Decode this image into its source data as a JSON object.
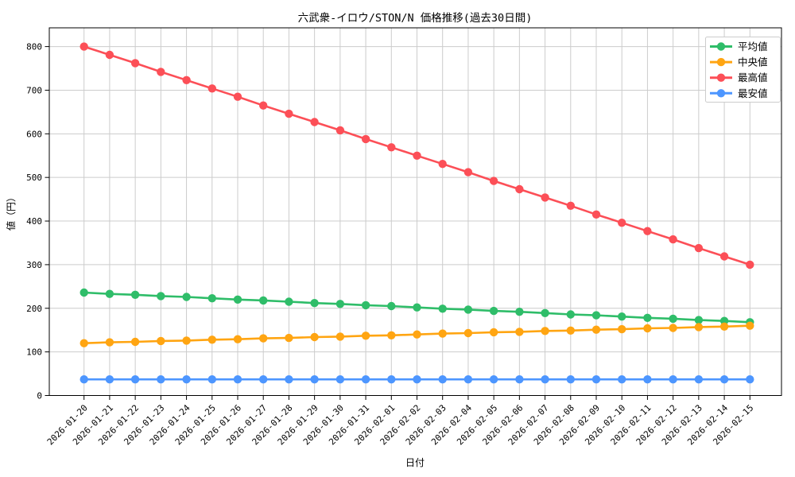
{
  "chart_data": {
    "type": "line",
    "title": "六武衆-イロウ/STON/N 価格推移(過去30日間)",
    "xlabel": "日付",
    "ylabel": "値（円）",
    "grid": true,
    "legend_position": "upper right",
    "ylim": [
      0,
      843
    ],
    "yticks": [
      0,
      100,
      200,
      300,
      400,
      500,
      600,
      700,
      800
    ],
    "colors": {
      "average": "#2fbd69",
      "median": "#ffa512",
      "max": "#fc4f57",
      "min": "#4d96ff",
      "grid": "#cccccc",
      "axis": "#000000",
      "legend_border": "#cccccc"
    },
    "categories": [
      "2026-01-20",
      "2026-01-21",
      "2026-01-22",
      "2026-01-23",
      "2026-01-24",
      "2026-01-25",
      "2026-01-26",
      "2026-01-27",
      "2026-01-28",
      "2026-01-29",
      "2026-01-30",
      "2026-01-31",
      "2026-02-01",
      "2026-02-02",
      "2026-02-03",
      "2026-02-04",
      "2026-02-05",
      "2026-02-06",
      "2026-02-07",
      "2026-02-08",
      "2026-02-09",
      "2026-02-10",
      "2026-02-11",
      "2026-02-12",
      "2026-02-13",
      "2026-02-14",
      "2026-02-15"
    ],
    "series": [
      {
        "key": "average",
        "name": "平均値",
        "values": [
          236,
          233,
          231,
          228,
          226,
          223,
          220,
          218,
          215,
          212,
          210,
          207,
          205,
          202,
          199,
          197,
          194,
          192,
          189,
          186,
          184,
          181,
          178,
          176,
          173,
          171,
          168
        ]
      },
      {
        "key": "median",
        "name": "中央値",
        "values": [
          120,
          122,
          123,
          125,
          126,
          128,
          129,
          131,
          132,
          134,
          135,
          137,
          138,
          140,
          142,
          143,
          145,
          146,
          148,
          149,
          151,
          152,
          154,
          155,
          157,
          158,
          160
        ]
      },
      {
        "key": "max",
        "name": "最高値",
        "values": [
          800,
          781,
          762,
          742,
          723,
          704,
          685,
          665,
          646,
          627,
          608,
          588,
          569,
          550,
          531,
          512,
          492,
          473,
          454,
          435,
          415,
          396,
          377,
          358,
          338,
          319,
          300
        ]
      },
      {
        "key": "min",
        "name": "最安値",
        "values": [
          37,
          37,
          37,
          37,
          37,
          37,
          37,
          37,
          37,
          37,
          37,
          37,
          37,
          37,
          37,
          37,
          37,
          37,
          37,
          37,
          37,
          37,
          37,
          37,
          37,
          37,
          37
        ]
      }
    ]
  }
}
